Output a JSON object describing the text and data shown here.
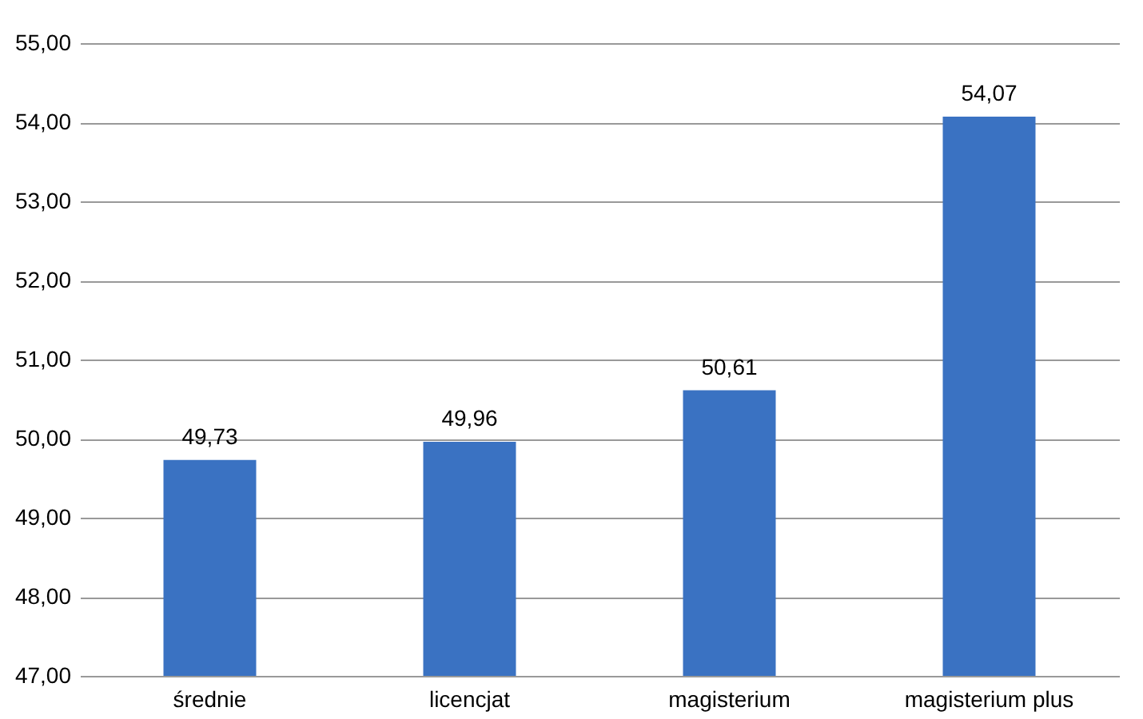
{
  "chart_data": {
    "type": "bar",
    "categories": [
      "średnie",
      "licencjat",
      "magisterium",
      "magisterium plus"
    ],
    "values": [
      49.73,
      49.96,
      50.61,
      54.07
    ],
    "value_labels": [
      "49,73",
      "49,96",
      "50,61",
      "54,07"
    ],
    "color": "#3a72c2",
    "ylim": [
      47,
      55
    ],
    "yticks": [
      {
        "value": 47,
        "label": "47,00"
      },
      {
        "value": 48,
        "label": "48,00"
      },
      {
        "value": 49,
        "label": "49,00"
      },
      {
        "value": 50,
        "label": "50,00"
      },
      {
        "value": 51,
        "label": "51,00"
      },
      {
        "value": 52,
        "label": "52,00"
      },
      {
        "value": 53,
        "label": "53,00"
      },
      {
        "value": 54,
        "label": "54,00"
      },
      {
        "value": 55,
        "label": "55,00"
      }
    ],
    "grid": true
  }
}
